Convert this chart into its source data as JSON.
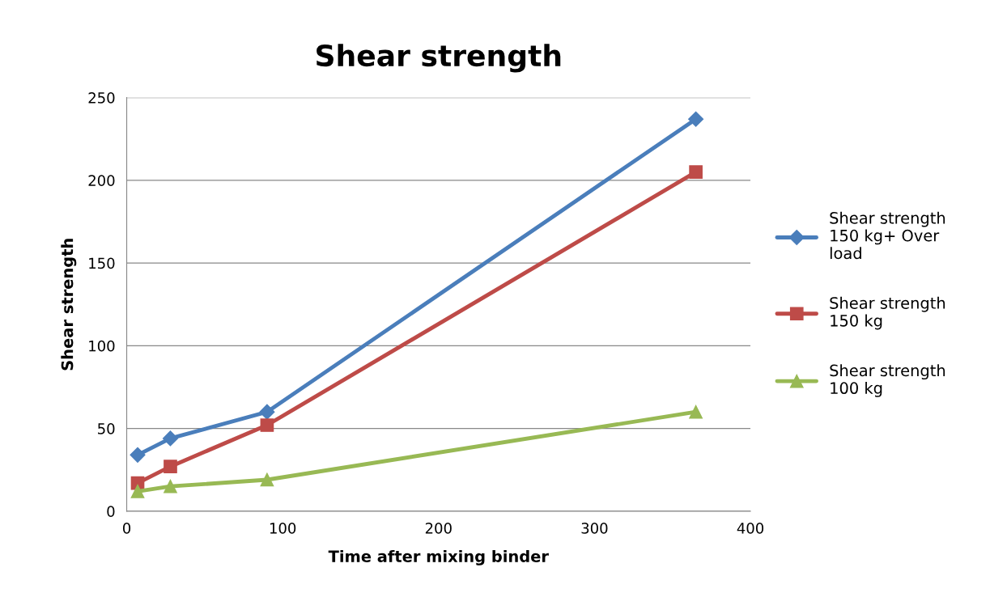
{
  "chart_data": {
    "type": "line",
    "title": "Shear strength",
    "xlabel": "Time after mixing binder",
    "ylabel": "Shear strength",
    "x": [
      7,
      28,
      90,
      365
    ],
    "series": [
      {
        "name": "Shear strength\n150 kg+ Over\nload",
        "color": "#4a7ebb",
        "marker": "diamond",
        "values": [
          34,
          44,
          60,
          237
        ]
      },
      {
        "name": "Shear strength\n150 kg",
        "color": "#be4b48",
        "marker": "square",
        "values": [
          17,
          27,
          52,
          205
        ]
      },
      {
        "name": "Shear strength\n100 kg",
        "color": "#98b954",
        "marker": "triangle",
        "values": [
          12,
          15,
          19,
          60
        ]
      }
    ],
    "xlim": [
      0,
      400
    ],
    "xticks": [
      0,
      100,
      200,
      300,
      400
    ],
    "ylim": [
      0,
      250
    ],
    "yticks": [
      0,
      50,
      100,
      150,
      200,
      250
    ],
    "grid": "y",
    "legend": "right",
    "line_style": "solid"
  }
}
